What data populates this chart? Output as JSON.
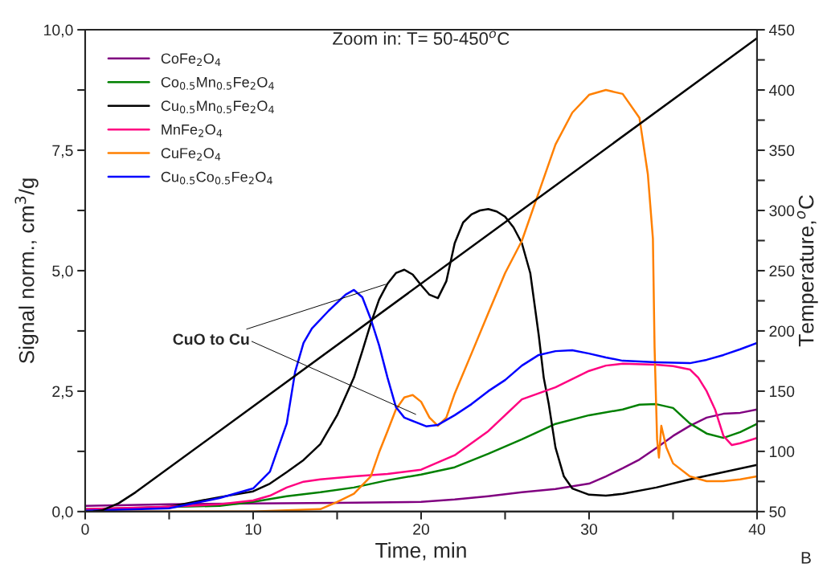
{
  "chart_data": {
    "type": "line",
    "title": "Zoom in: T= 50-450$^{o}$C",
    "xlabel": "Time, min",
    "ylabel": "Signal norm., cm$^{3}$/g",
    "y2label": "Temperature,$^{o}$C",
    "xlim": [
      0,
      40
    ],
    "xticks": [
      0,
      {
        "value": 5,
        "label": null
      },
      10,
      {
        "value": 15,
        "label": null
      },
      20,
      {
        "value": 25,
        "label": null
      },
      30,
      {
        "value": 35,
        "label": null
      },
      40
    ],
    "ylim": [
      0,
      10
    ],
    "yticks": [
      {
        "value": 0,
        "label": "0,0"
      },
      {
        "value": 1.25,
        "label": null
      },
      {
        "value": 2.5,
        "label": "2,5"
      },
      {
        "value": 3.75,
        "label": null
      },
      {
        "value": 5,
        "label": "5,0"
      },
      {
        "value": 6.25,
        "label": null
      },
      {
        "value": 7.5,
        "label": "7,5"
      },
      {
        "value": 8.75,
        "label": null
      },
      {
        "value": 10,
        "label": "10,0"
      }
    ],
    "y2lim": [
      50,
      450
    ],
    "y2ticks": [
      50,
      {
        "value": 75,
        "label": null
      },
      100,
      {
        "value": 125,
        "label": null
      },
      150,
      {
        "value": 175,
        "label": null
      },
      200,
      {
        "value": 225,
        "label": null
      },
      250,
      {
        "value": 275,
        "label": null
      },
      300,
      {
        "value": 325,
        "label": null
      },
      350,
      {
        "value": 375,
        "label": null
      },
      400,
      {
        "value": 425,
        "label": null
      },
      450
    ],
    "grid": false,
    "legend": "top left",
    "series": [
      {
        "name": "CoFe$_{2}$O$_{4}$",
        "color": "#800080",
        "x": [
          0,
          5,
          10,
          15,
          20,
          22,
          24,
          26,
          28,
          30,
          31,
          32,
          33,
          34,
          35,
          36,
          37,
          38,
          39,
          40
        ],
        "values": [
          0.12,
          0.15,
          0.17,
          0.18,
          0.2,
          0.25,
          0.32,
          0.4,
          0.47,
          0.58,
          0.73,
          0.9,
          1.08,
          1.32,
          1.57,
          1.78,
          1.95,
          2.03,
          2.05,
          2.12
        ]
      },
      {
        "name": "Co$_{0.5}$Mn$_{0.5}$Fe$_{2}$O$_{4}$",
        "color": "#008000",
        "x": [
          0,
          8,
          10,
          12,
          14,
          16,
          18,
          20,
          22,
          24,
          26,
          28,
          30,
          32,
          33,
          34,
          35,
          36,
          37,
          38,
          39,
          40
        ],
        "values": [
          0.05,
          0.12,
          0.2,
          0.32,
          0.4,
          0.5,
          0.65,
          0.77,
          0.92,
          1.2,
          1.5,
          1.82,
          2.0,
          2.12,
          2.22,
          2.23,
          2.15,
          1.83,
          1.62,
          1.53,
          1.65,
          1.82
        ]
      },
      {
        "name": "Cu$_{0.5}$Mn$_{0.5}$Fe$_{2}$O$_{4}$",
        "color": "#000000",
        "x": [
          0,
          5,
          8,
          10,
          11,
          12,
          13,
          14,
          15,
          16,
          16.5,
          17,
          17.5,
          18,
          18.5,
          19,
          19.5,
          20,
          20.5,
          21,
          21.5,
          22,
          22.5,
          23,
          23.5,
          24,
          24.5,
          25,
          25.5,
          26,
          26.5,
          27,
          27.3,
          27.6,
          28,
          28.5,
          29,
          30,
          31,
          32,
          34,
          36,
          38,
          40
        ],
        "values": [
          0.02,
          0.1,
          0.3,
          0.42,
          0.58,
          0.82,
          1.07,
          1.4,
          2.0,
          2.78,
          3.33,
          3.9,
          4.4,
          4.73,
          4.95,
          5.02,
          4.92,
          4.7,
          4.5,
          4.43,
          4.78,
          5.57,
          6.0,
          6.17,
          6.25,
          6.28,
          6.23,
          6.12,
          5.9,
          5.57,
          4.95,
          3.67,
          2.78,
          2.23,
          1.33,
          0.73,
          0.48,
          0.35,
          0.33,
          0.37,
          0.5,
          0.67,
          0.82,
          0.97
        ]
      },
      {
        "name": "MnFe$_{2}$O$_{4}$",
        "color": "#ff0080",
        "x": [
          0,
          5,
          8,
          10,
          11,
          12,
          13,
          14,
          16,
          18,
          20,
          22,
          24,
          26,
          28,
          30,
          31,
          32,
          34,
          35,
          36,
          36.5,
          37,
          37.5,
          38,
          38.5,
          39,
          40
        ],
        "values": [
          0.05,
          0.1,
          0.15,
          0.23,
          0.33,
          0.5,
          0.62,
          0.67,
          0.73,
          0.78,
          0.87,
          1.17,
          1.67,
          2.33,
          2.58,
          2.92,
          3.03,
          3.07,
          3.05,
          3.02,
          2.95,
          2.78,
          2.5,
          2.12,
          1.57,
          1.38,
          1.42,
          1.53
        ]
      },
      {
        "name": "CuFe$_{2}$O$_{4}$",
        "color": "#ff8000",
        "x": [
          0,
          10,
          14,
          15,
          16,
          17,
          17.5,
          18,
          18.5,
          19,
          19.5,
          20,
          20.5,
          21,
          21.5,
          22,
          23,
          24,
          25,
          26,
          27,
          28,
          29,
          30,
          31,
          32,
          33,
          33.5,
          33.8,
          33.9,
          34.05,
          34.16,
          34.3,
          34.6,
          35,
          36,
          37,
          38,
          39,
          40
        ],
        "values": [
          0.0,
          0.0,
          0.05,
          0.2,
          0.37,
          0.73,
          1.23,
          1.67,
          2.12,
          2.37,
          2.42,
          2.28,
          1.95,
          1.78,
          1.95,
          2.45,
          3.28,
          4.12,
          4.95,
          5.62,
          6.62,
          7.62,
          8.28,
          8.65,
          8.75,
          8.67,
          8.17,
          7.0,
          5.67,
          3.4,
          1.5,
          1.12,
          1.78,
          1.33,
          1.0,
          0.73,
          0.63,
          0.63,
          0.67,
          0.73
        ]
      },
      {
        "name": "Cu$_{0.5}$Co$_{0.5}$Fe$_{2}$O$_{4}$",
        "color": "#0000ff",
        "x": [
          0,
          5,
          8,
          10,
          11,
          12,
          12.5,
          13,
          13.5,
          14.5,
          15.5,
          16,
          16.5,
          17,
          17.5,
          18,
          18.5,
          19,
          20.3,
          21,
          22,
          23,
          24,
          25,
          26,
          27,
          28,
          29,
          30,
          31,
          32,
          34,
          36,
          37,
          38,
          39,
          40
        ],
        "values": [
          0.02,
          0.07,
          0.28,
          0.48,
          0.83,
          1.83,
          2.9,
          3.5,
          3.8,
          4.17,
          4.5,
          4.6,
          4.45,
          4.0,
          3.45,
          2.78,
          2.17,
          1.95,
          1.77,
          1.8,
          2.0,
          2.23,
          2.5,
          2.73,
          3.03,
          3.25,
          3.33,
          3.35,
          3.28,
          3.2,
          3.13,
          3.1,
          3.08,
          3.15,
          3.25,
          3.37,
          3.5
        ]
      },
      {
        "color": "#000000",
        "axis": "y2",
        "x": [
          0.5,
          1,
          2,
          3,
          40
        ],
        "values": [
          50,
          51,
          57,
          66,
          443
        ]
      }
    ],
    "annotations": [
      {
        "text": "CuO to Cu",
        "x": 18,
        "y": 4.73
      },
      "B"
    ]
  }
}
